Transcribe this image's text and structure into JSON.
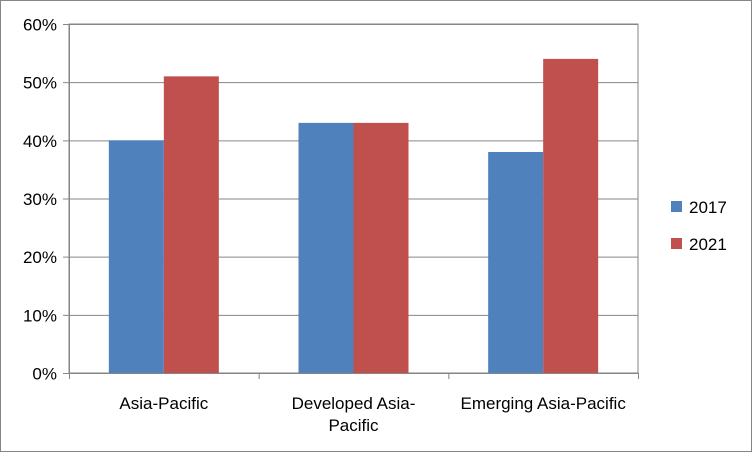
{
  "chart_data": {
    "type": "bar",
    "title": "",
    "xlabel": "",
    "ylabel": "",
    "categories": [
      "Asia-Pacific",
      "Developed Asia-Pacific",
      "Emerging Asia-Pacific"
    ],
    "category_lines": [
      [
        "Asia-Pacific"
      ],
      [
        "Developed Asia-",
        "Pacific"
      ],
      [
        "Emerging Asia-Pacific"
      ]
    ],
    "series": [
      {
        "name": "2017",
        "color": "#4F81BD",
        "values": [
          40,
          43,
          38
        ]
      },
      {
        "name": "2021",
        "color": "#C0504D",
        "values": [
          51,
          43,
          54
        ]
      }
    ],
    "ylim": [
      0,
      60
    ],
    "yticks": [
      0,
      10,
      20,
      30,
      40,
      50,
      60
    ],
    "ytick_labels": [
      "0%",
      "10%",
      "20%",
      "30%",
      "40%",
      "50%",
      "60%"
    ],
    "grid": true,
    "legend": "right"
  }
}
